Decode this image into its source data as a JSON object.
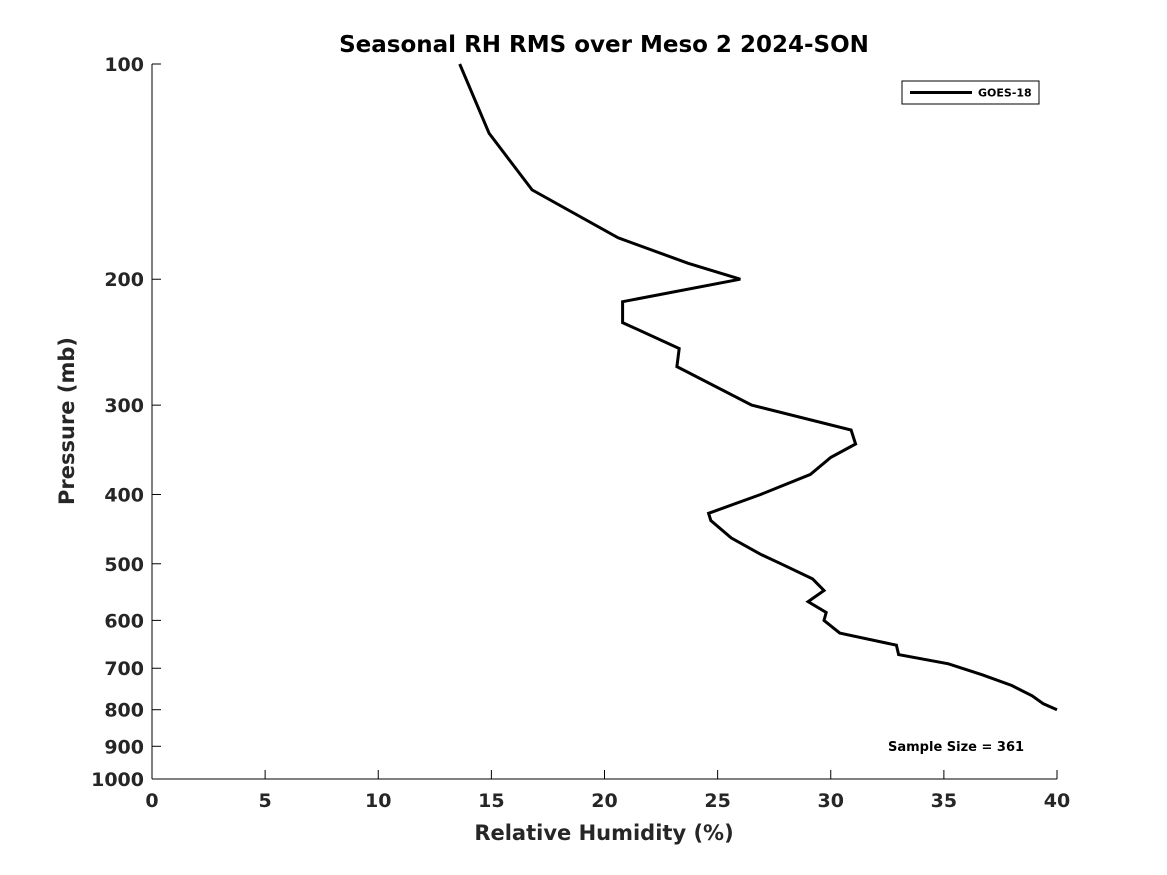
{
  "chart_data": {
    "type": "line",
    "title": "Seasonal RH RMS over Meso 2  2024-SON",
    "xlabel": "Relative Humidity (%)",
    "ylabel": "Pressure (mb)",
    "xlim": [
      0,
      40
    ],
    "ylim": [
      100,
      1000
    ],
    "yscale": "log",
    "y_reversed": true,
    "grid": false,
    "xticks": [
      0,
      5,
      10,
      15,
      20,
      25,
      30,
      35,
      40
    ],
    "xtick_labels": [
      "0",
      "5",
      "10",
      "15",
      "20",
      "25",
      "30",
      "35",
      "40"
    ],
    "yticks": [
      100,
      200,
      300,
      400,
      500,
      600,
      700,
      800,
      900,
      1000
    ],
    "ytick_labels": [
      "100",
      "200",
      "300",
      "400",
      "500",
      "600",
      "700",
      "800",
      "900",
      "1000"
    ],
    "legend": {
      "location": "top-right",
      "entries": [
        "GOES-18"
      ]
    },
    "annotation": "Sample Size = 361",
    "series": [
      {
        "name": "GOES-18",
        "color": "#000000",
        "x": [
          13.6,
          14.9,
          16.8,
          20.6,
          23.7,
          26.0,
          20.8,
          20.8,
          23.3,
          23.2,
          26.5,
          30.9,
          31.1,
          30.0,
          29.1,
          26.9,
          24.6,
          24.7,
          25.6,
          26.9,
          27.8,
          29.2,
          29.7,
          29.0,
          29.8,
          29.7,
          30.4,
          32.9,
          33.0,
          35.2,
          36.7,
          38.0,
          38.9,
          39.4,
          40.0
        ],
        "y": [
          100,
          125,
          150,
          175,
          190,
          200,
          215,
          230,
          250,
          265,
          300,
          325,
          340,
          355,
          375,
          400,
          425,
          435,
          460,
          485,
          500,
          525,
          545,
          565,
          585,
          600,
          625,
          650,
          670,
          690,
          715,
          740,
          765,
          785,
          800
        ]
      }
    ]
  }
}
